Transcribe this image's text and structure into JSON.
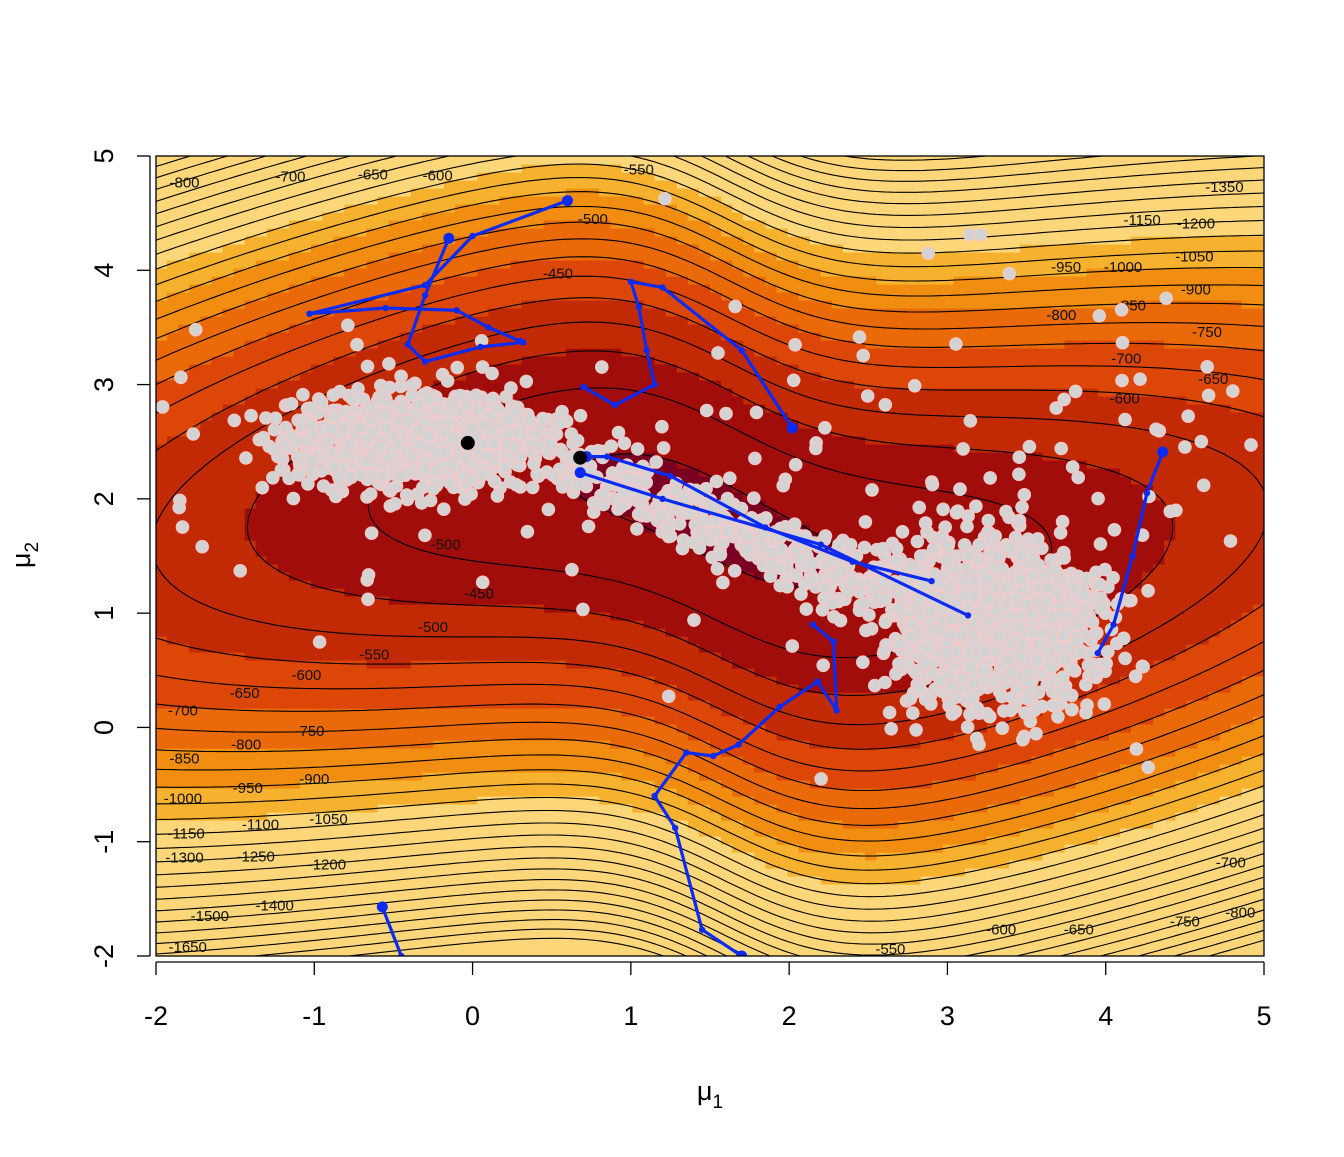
{
  "chart_data": {
    "type": "scatter",
    "title": "",
    "xlabel": "μ",
    "xlabel_sub": "1",
    "ylabel": "μ",
    "ylabel_sub": "2",
    "xlim": [
      -2,
      5
    ],
    "ylim": [
      -2,
      5
    ],
    "x_ticks": [
      -2,
      -1,
      0,
      1,
      2,
      3,
      4,
      5
    ],
    "y_ticks": [
      -2,
      -1,
      0,
      1,
      2,
      3,
      4,
      5
    ],
    "x_tick_labels": [
      "-2",
      "-1",
      "0",
      "1",
      "2",
      "3",
      "4",
      "5"
    ],
    "y_tick_labels": [
      "-2",
      "-1",
      "0",
      "1",
      "2",
      "3",
      "4",
      "5"
    ],
    "grid": false,
    "legend": "none",
    "background": {
      "kind": "filled log-density contour",
      "colors": [
        "#7a0022",
        "#a00d0a",
        "#c22a05",
        "#dc4708",
        "#ea6a0a",
        "#f18d10",
        "#f6b12e",
        "#fbd77a"
      ]
    },
    "contour_labels": [
      {
        "text": "-800",
        "x": -1.82,
        "y": 4.77
      },
      {
        "text": "-700",
        "x": -1.15,
        "y": 4.82
      },
      {
        "text": "-650",
        "x": -0.63,
        "y": 4.84
      },
      {
        "text": "-600",
        "x": -0.22,
        "y": 4.83
      },
      {
        "text": "-550",
        "x": 1.05,
        "y": 4.88
      },
      {
        "text": "-500",
        "x": 0.76,
        "y": 4.45
      },
      {
        "text": "-450",
        "x": 0.54,
        "y": 3.97
      },
      {
        "text": "-1350",
        "x": 4.75,
        "y": 4.73
      },
      {
        "text": "-1150",
        "x": 4.23,
        "y": 4.44
      },
      {
        "text": "-1200",
        "x": 4.57,
        "y": 4.41
      },
      {
        "text": "-1050",
        "x": 4.56,
        "y": 4.12
      },
      {
        "text": "-950",
        "x": 3.75,
        "y": 4.03
      },
      {
        "text": "-1000",
        "x": 4.11,
        "y": 4.03
      },
      {
        "text": "-900",
        "x": 4.57,
        "y": 3.83
      },
      {
        "text": "-850",
        "x": 4.16,
        "y": 3.69
      },
      {
        "text": "-800",
        "x": 3.72,
        "y": 3.61
      },
      {
        "text": "-750",
        "x": 4.64,
        "y": 3.46
      },
      {
        "text": "-700",
        "x": 4.13,
        "y": 3.23
      },
      {
        "text": "-650",
        "x": 4.68,
        "y": 3.05
      },
      {
        "text": "-600",
        "x": 4.12,
        "y": 2.88
      },
      {
        "text": "-500",
        "x": -0.17,
        "y": 1.6
      },
      {
        "text": "-450",
        "x": 0.04,
        "y": 1.17
      },
      {
        "text": "-500",
        "x": -0.25,
        "y": 0.88
      },
      {
        "text": "-550",
        "x": -0.62,
        "y": 0.64
      },
      {
        "text": "-600",
        "x": -1.05,
        "y": 0.46
      },
      {
        "text": "-650",
        "x": -1.44,
        "y": 0.3
      },
      {
        "text": "-700",
        "x": -1.83,
        "y": 0.15
      },
      {
        "text": "-750",
        "x": -1.03,
        "y": -0.03
      },
      {
        "text": "-800",
        "x": -1.43,
        "y": -0.15
      },
      {
        "text": "-850",
        "x": -1.82,
        "y": -0.27
      },
      {
        "text": "-900",
        "x": -1.0,
        "y": -0.45
      },
      {
        "text": "-950",
        "x": -1.42,
        "y": -0.53
      },
      {
        "text": "-1000",
        "x": -1.83,
        "y": -0.62
      },
      {
        "text": "-1050",
        "x": -0.91,
        "y": -0.8
      },
      {
        "text": "-1100",
        "x": -1.34,
        "y": -0.85
      },
      {
        "text": "-1150",
        "x": -1.81,
        "y": -0.93
      },
      {
        "text": "-1200",
        "x": -0.92,
        "y": -1.2
      },
      {
        "text": "-1250",
        "x": -1.37,
        "y": -1.13
      },
      {
        "text": "-1300",
        "x": -1.82,
        "y": -1.14
      },
      {
        "text": "-1400",
        "x": -1.25,
        "y": -1.56
      },
      {
        "text": "-1500",
        "x": -1.66,
        "y": -1.65
      },
      {
        "text": "-1650",
        "x": -1.8,
        "y": -1.92
      },
      {
        "text": "-550",
        "x": 2.64,
        "y": -1.94
      },
      {
        "text": "-600",
        "x": 3.34,
        "y": -1.77
      },
      {
        "text": "-650",
        "x": 3.83,
        "y": -1.77
      },
      {
        "text": "-750",
        "x": 4.5,
        "y": -1.7
      },
      {
        "text": "-800",
        "x": 4.85,
        "y": -1.62
      },
      {
        "text": "-700",
        "x": 4.79,
        "y": -1.18
      }
    ],
    "mode_points": [
      {
        "x": -0.03,
        "y": 2.49
      },
      {
        "x": 0.68,
        "y": 2.36
      }
    ],
    "samples": {
      "kind": "posterior draws",
      "color": "#d3d3d3",
      "stroke": "#f5c8c8",
      "clusters": [
        {
          "cx": -0.35,
          "cy": 2.5,
          "sx": 0.55,
          "sy": 0.26
        },
        {
          "cx": 3.3,
          "cy": 0.95,
          "sx": 0.45,
          "sy": 0.48
        }
      ],
      "bridge": {
        "x0": 0.6,
        "y0": 2.3,
        "x1": 2.6,
        "y1": 1.2
      }
    },
    "paths": [
      {
        "name": "",
        "points": [
          [
            -0.15,
            4.28
          ],
          [
            -0.3,
            3.78
          ],
          [
            -0.41,
            3.35
          ],
          [
            -0.3,
            3.2
          ],
          [
            0.05,
            3.33
          ],
          [
            0.32,
            3.37
          ]
        ]
      },
      {
        "name": "",
        "points": [
          [
            0.6,
            4.61
          ],
          [
            0.0,
            4.3
          ],
          [
            -0.3,
            3.87
          ],
          [
            -1.03,
            3.62
          ],
          [
            -0.55,
            3.67
          ],
          [
            -0.1,
            3.65
          ],
          [
            0.1,
            3.5
          ],
          [
            0.3,
            3.38
          ]
        ]
      },
      {
        "name": "",
        "points": [
          [
            2.02,
            2.62
          ],
          [
            1.7,
            3.3
          ],
          [
            1.2,
            3.85
          ],
          [
            1.0,
            3.9
          ],
          [
            1.05,
            3.68
          ],
          [
            1.1,
            3.3
          ],
          [
            1.15,
            3.0
          ],
          [
            0.9,
            2.82
          ],
          [
            0.7,
            2.98
          ]
        ]
      },
      {
        "name": "",
        "points": [
          [
            0.72,
            2.37
          ],
          [
            0.85,
            2.37
          ],
          [
            1.25,
            2.2
          ],
          [
            1.85,
            1.75
          ],
          [
            2.4,
            1.45
          ],
          [
            2.9,
            1.28
          ]
        ]
      },
      {
        "name": "",
        "points": [
          [
            0.68,
            2.23
          ],
          [
            1.2,
            2.0
          ],
          [
            2.2,
            1.6
          ],
          [
            3.13,
            0.98
          ]
        ]
      },
      {
        "name": "",
        "points": [
          [
            1.7,
            -2.0
          ],
          [
            1.45,
            -1.77
          ],
          [
            1.28,
            -0.88
          ],
          [
            1.15,
            -0.6
          ],
          [
            1.35,
            -0.22
          ],
          [
            1.52,
            -0.25
          ],
          [
            1.68,
            -0.15
          ],
          [
            1.94,
            0.18
          ],
          [
            2.18,
            0.4
          ],
          [
            2.3,
            0.15
          ],
          [
            2.28,
            0.75
          ],
          [
            2.15,
            0.9
          ]
        ]
      },
      {
        "name": "",
        "points": [
          [
            4.36,
            2.41
          ],
          [
            4.26,
            2.05
          ],
          [
            4.17,
            1.5
          ],
          [
            4.05,
            0.9
          ],
          [
            3.95,
            0.65
          ]
        ]
      },
      {
        "name": "",
        "points": [
          [
            -0.57,
            -1.57
          ],
          [
            -0.45,
            -2.0
          ]
        ]
      }
    ],
    "path_color": "#0b2bf2"
  }
}
